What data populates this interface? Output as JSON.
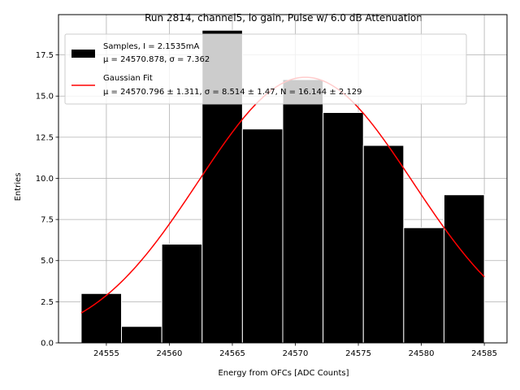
{
  "chart_data": {
    "type": "bar",
    "title": "Run 2814, channel5, lo gain, Pulse w/ 6.0 dB Attenuation",
    "xlabel": "Energy from OFCs [ADC Counts]",
    "ylabel": "Entries",
    "xlim": [
      24551.2,
      24586.8
    ],
    "ylim": [
      0,
      19.95
    ],
    "xticks": [
      24555,
      24560,
      24565,
      24570,
      24575,
      24580,
      24585
    ],
    "yticks": [
      0.0,
      2.5,
      5.0,
      7.5,
      10.0,
      12.5,
      15.0,
      17.5
    ],
    "ytick_labels": [
      "0.0",
      "2.5",
      "5.0",
      "7.5",
      "10.0",
      "12.5",
      "15.0",
      "17.5"
    ],
    "grid": true,
    "legend_position": "top-left",
    "bin_edges": [
      24553.0,
      24556.2,
      24559.4,
      24562.6,
      24565.8,
      24569.0,
      24572.2,
      24575.4,
      24578.6,
      24581.8,
      24585.0
    ],
    "values": [
      3,
      1,
      6,
      19,
      13,
      16,
      14,
      12,
      7,
      9
    ],
    "series": [
      {
        "kind": "histogram",
        "name": "Samples, I = 2.1535mA",
        "name_line2": "μ = 24570.878, σ = 7.362",
        "color": "#000000",
        "edge_color": "#ffffff"
      },
      {
        "kind": "line",
        "name": "Gaussian Fit",
        "name_line2": "μ = 24570.796 ± 1.311, σ = 8.514 ± 1.47, N = 16.144 ± 2.129",
        "color": "#ff0000",
        "mu": 24570.796,
        "sigma": 8.514,
        "amplitude": 16.144
      }
    ]
  }
}
